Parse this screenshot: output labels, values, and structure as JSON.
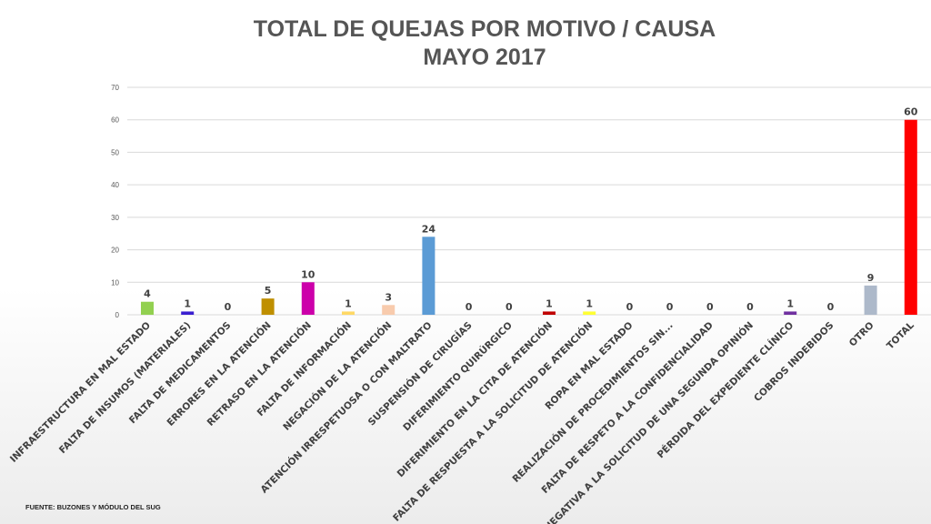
{
  "chart_data": {
    "type": "bar",
    "title": "TOTAL DE QUEJAS POR MOTIVO / CAUSA",
    "subtitle": "MAYO 2017",
    "xlabel": "",
    "ylabel": "",
    "ylim": [
      0,
      70
    ],
    "yticks": [
      0,
      10,
      20,
      30,
      40,
      50,
      60,
      70
    ],
    "grid": true,
    "categories": [
      "INFRAESTRUCTURA EN MAL ESTADO",
      "FALTA DE INSUMOS (MATERIALES)",
      "FALTA DE MEDICAMENTOS",
      "ERRORES EN LA ATENCIÓN",
      "RETRASO EN LA ATENCIÓN",
      "FALTA DE INFORMACIÓN",
      "NEGACIÓN DE LA ATENCIÓN",
      "ATENCIÓN IRRESPETUOSA O CON MALTRATO",
      "SUSPENSIÓN DE CIRUGÍAS",
      "DIFERIMIENTO QUIRÚRGICO",
      "DIFERIMIENTO EN LA CITA DE ATENCIÓN",
      "FALTA DE RESPUESTA A LA SOLICITUD DE ATENCIÓN",
      "ROPA EN MAL ESTADO",
      "REALIZACIÓN DE PROCEDIMIENTOS SIN...",
      "FALTA DE RESPETO A LA CONFIDENCIALIDAD",
      "NEGATIVA A LA SOLICITUD DE UNA SEGUNDA OPINIÓN",
      "PÉRDIDA DEL EXPEDIENTE CLÍNICO",
      "COBROS INDEBIDOS",
      "OTRO",
      "TOTAL"
    ],
    "values": [
      4,
      1,
      0,
      5,
      10,
      1,
      3,
      24,
      0,
      0,
      1,
      1,
      0,
      0,
      0,
      0,
      1,
      0,
      9,
      60
    ],
    "colors": [
      "#92d050",
      "#3a1fd0",
      "#888888",
      "#bf8f00",
      "#cc00aa",
      "#ffd966",
      "#f8cbad",
      "#5b9bd5",
      "#888888",
      "#888888",
      "#c00000",
      "#ffff33",
      "#888888",
      "#888888",
      "#888888",
      "#888888",
      "#7030a0",
      "#888888",
      "#adb9ca",
      "#ff0000"
    ]
  },
  "footer": "FUENTE: BUZONES Y MÓDULO DEL SUG"
}
